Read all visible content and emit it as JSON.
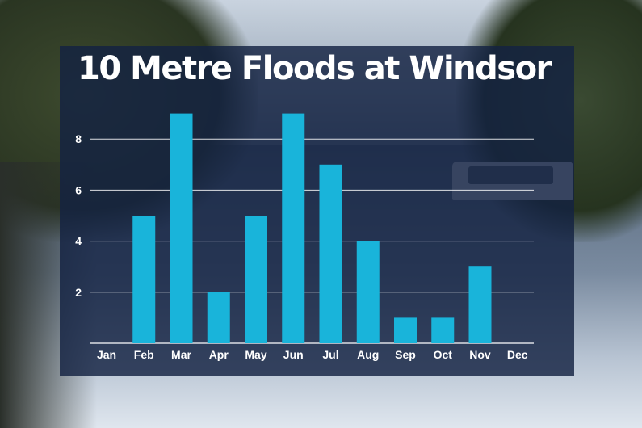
{
  "chart_data": {
    "type": "bar",
    "title": "10 Metre Floods at Windsor",
    "xlabel": "",
    "ylabel": "",
    "categories": [
      "Jan",
      "Feb",
      "Mar",
      "Apr",
      "May",
      "Jun",
      "Jul",
      "Aug",
      "Sep",
      "Oct",
      "Nov",
      "Dec"
    ],
    "values": [
      0,
      5,
      9,
      2,
      5,
      9,
      7,
      4,
      1,
      1,
      3,
      0
    ],
    "yticks": [
      2,
      4,
      6,
      8
    ],
    "ylim": [
      0,
      10
    ],
    "grid": true,
    "bar_color": "#19b4da"
  }
}
